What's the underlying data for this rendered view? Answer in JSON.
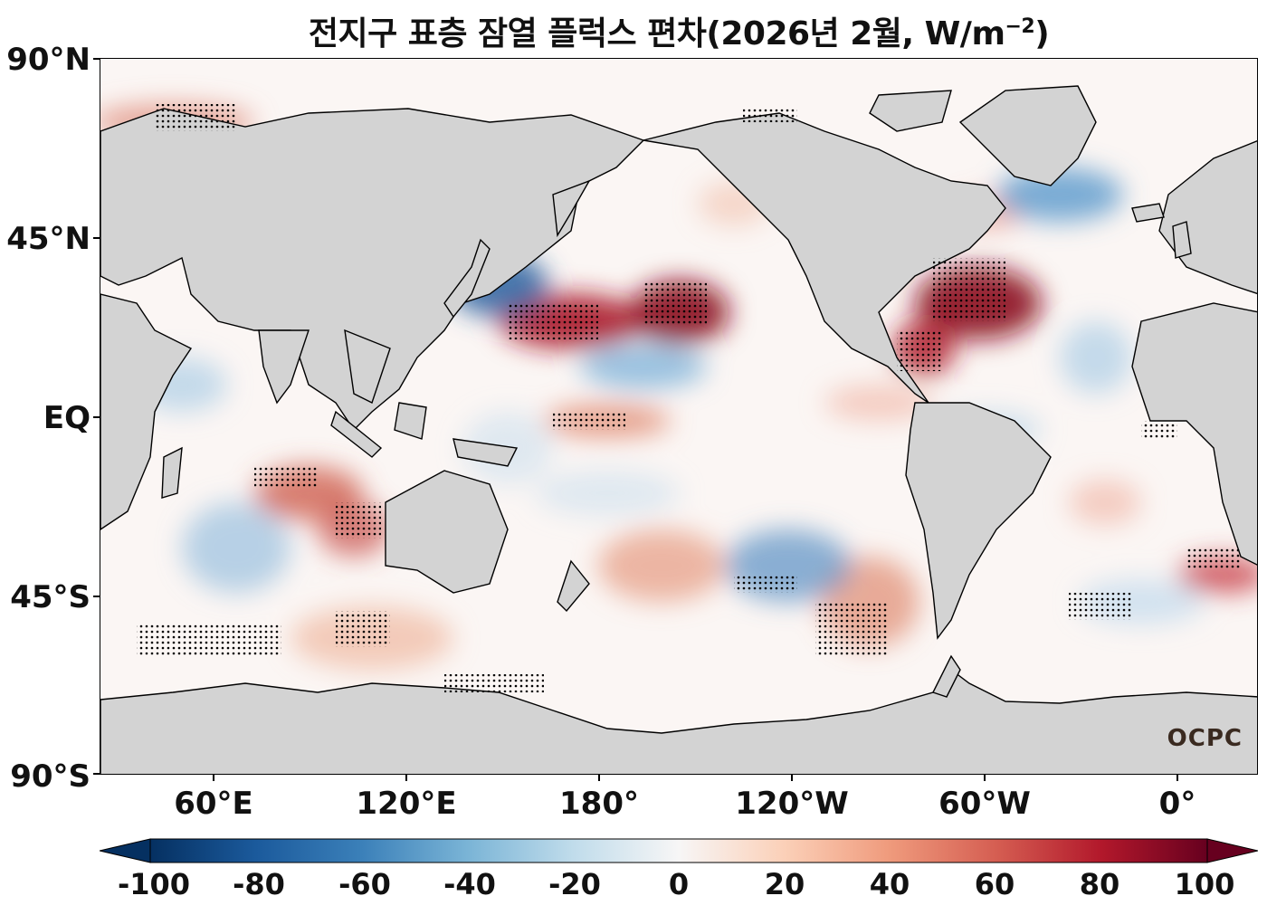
{
  "title": "전지구 표층 잠열 플럭스 편차(2026년 2월, W/m",
  "title_exponent": "−2",
  "title_close": ")",
  "lat_labels": [
    "90°N",
    "45°N",
    "EQ",
    "45°S",
    "90°S"
  ],
  "lon_labels": [
    "60°E",
    "120°E",
    "180°",
    "120°W",
    "60°W",
    "0°"
  ],
  "colorbar": {
    "ticks": [
      "-100",
      "-80",
      "-60",
      "-40",
      "-20",
      "0",
      "20",
      "40",
      "60",
      "80",
      "100"
    ],
    "min": -100,
    "max": 100,
    "extend": "both",
    "colormap": "RdBu_r"
  },
  "logo": "OCPC",
  "colors": {
    "land": "#d3d3d3",
    "coast": "#000000",
    "positive": "#8b0a1c",
    "negative": "#0a3a78"
  }
}
